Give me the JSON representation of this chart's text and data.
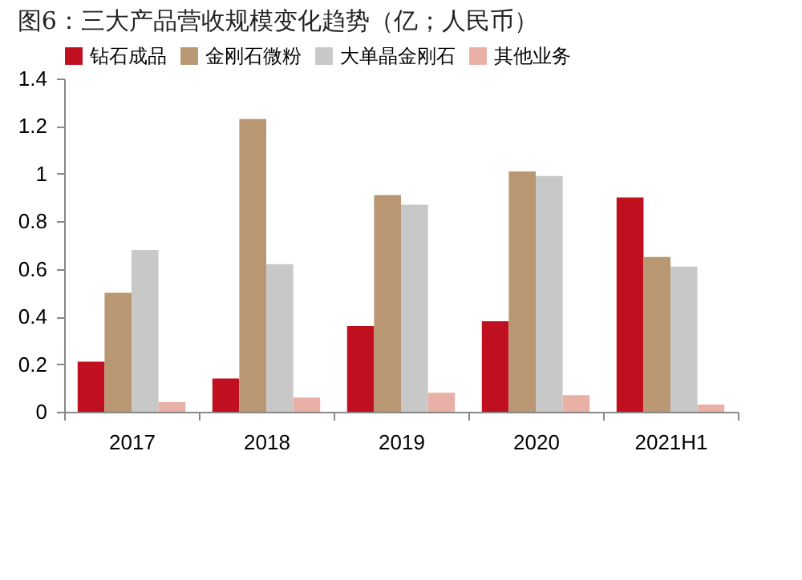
{
  "chart_data": {
    "type": "bar",
    "title": "图6：三大产品营收规模变化趋势（亿；人民币）",
    "categories": [
      "2017",
      "2018",
      "2019",
      "2020",
      "2021H1"
    ],
    "series": [
      {
        "name": "钻石成品",
        "color": "#c00f1e",
        "values": [
          0.21,
          0.14,
          0.36,
          0.38,
          0.9
        ]
      },
      {
        "name": "金刚石微粉",
        "color": "#b89772",
        "values": [
          0.5,
          1.23,
          0.91,
          1.01,
          0.65
        ]
      },
      {
        "name": "大单晶金刚石",
        "color": "#c8c8c8",
        "values": [
          0.68,
          0.62,
          0.87,
          0.99,
          0.61
        ]
      },
      {
        "name": "其他业务",
        "color": "#e8b0a6",
        "values": [
          0.04,
          0.06,
          0.08,
          0.07,
          0.03
        ]
      }
    ],
    "ylim": [
      0,
      1.4
    ],
    "yticks": [
      0,
      0.2,
      0.4,
      0.6,
      0.8,
      1,
      1.2,
      1.4
    ],
    "grid": false,
    "legend": "top"
  }
}
